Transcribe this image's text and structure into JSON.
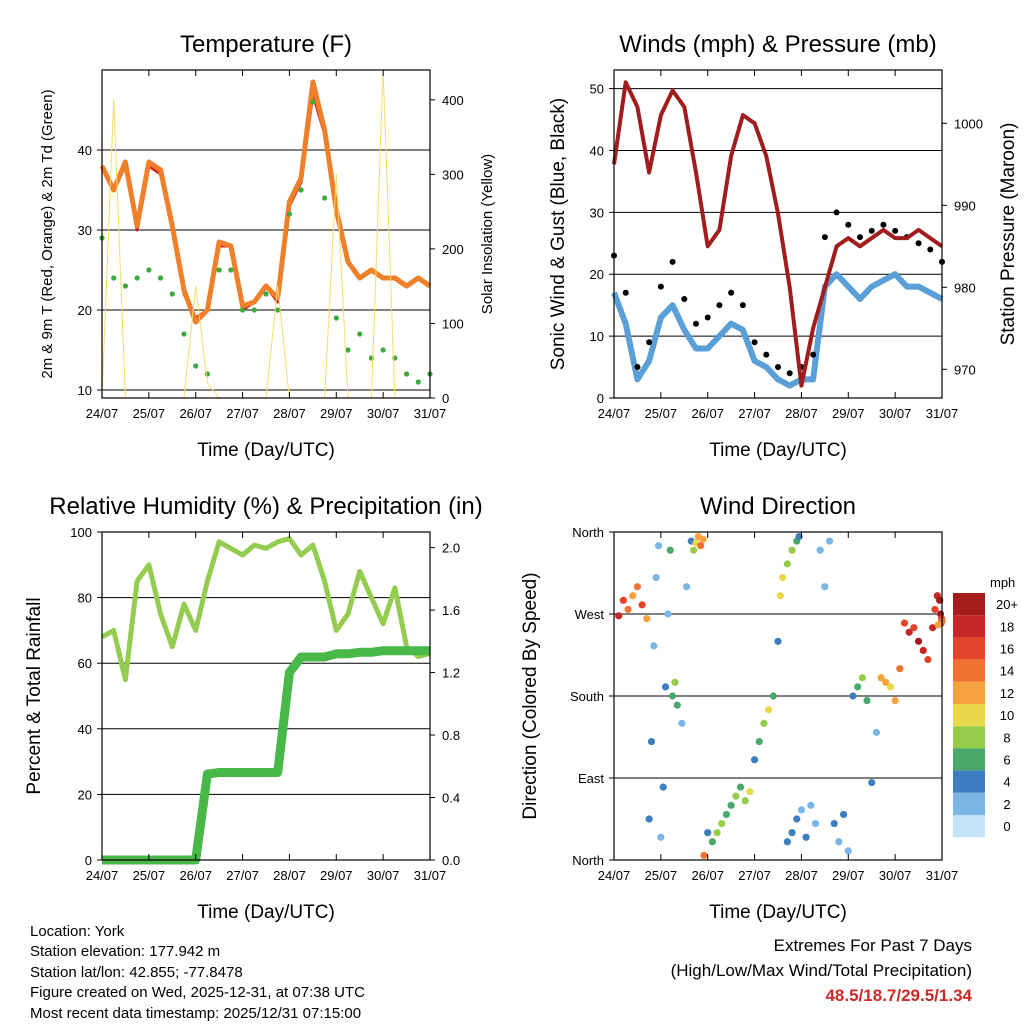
{
  "x_ticks": [
    "24/07",
    "25/07",
    "26/07",
    "27/07",
    "28/07",
    "29/07",
    "30/07",
    "31/07"
  ],
  "x_label": "Time (Day/UTC)",
  "colors": {
    "temp2m": "#d21f1f",
    "temp9m": "#f07f2a",
    "dewpoint": "#3cab3c",
    "solar": "#f5dd6b",
    "wind": "#5a9fd8",
    "gust": "#000000",
    "pressure": "#a11c1c",
    "rh": "#93cc4f",
    "precip": "#48b848"
  },
  "chart_data": [
    {
      "type": "line",
      "title": "Temperature (F)",
      "ylabel": "2m & 9m T (Red, Orange) & 2m Td (Green)",
      "y2label": "Solar Insolation (Yellow)",
      "ylim": [
        9,
        50
      ],
      "yticks": [
        10,
        20,
        30,
        40
      ],
      "y2lim": [
        0,
        440
      ],
      "y2ticks": [
        0,
        100,
        200,
        300,
        400
      ],
      "x": [
        0,
        0.25,
        0.5,
        0.75,
        1.0,
        1.25,
        1.5,
        1.75,
        2.0,
        2.25,
        2.5,
        2.75,
        3.0,
        3.25,
        3.5,
        3.75,
        4.0,
        4.25,
        4.5,
        4.75,
        5.0,
        5.25,
        5.5,
        5.75,
        6.0,
        6.25,
        6.5,
        6.75,
        7.0
      ],
      "series": [
        {
          "name": "2m T",
          "values": [
            38,
            35,
            38,
            30,
            38,
            37,
            30,
            22,
            19,
            20,
            28,
            28,
            20,
            21,
            23,
            21,
            33,
            36,
            47,
            42,
            32,
            26,
            24,
            25,
            24,
            24,
            23,
            24,
            23
          ]
        },
        {
          "name": "9m T",
          "values": [
            38,
            35,
            38.5,
            30.5,
            38.5,
            37.5,
            30.5,
            22.5,
            18.5,
            20,
            28.5,
            28,
            20.5,
            21,
            23,
            21.5,
            33.5,
            36.5,
            48.5,
            42.5,
            32.5,
            26,
            24,
            25,
            24,
            24,
            23,
            24,
            23
          ]
        },
        {
          "name": "2m Td",
          "values": [
            29,
            24,
            23,
            24,
            25,
            24,
            22,
            17,
            13,
            12,
            25,
            25,
            20,
            20,
            22,
            20,
            32,
            35,
            46,
            34,
            19,
            15,
            17,
            14,
            15,
            14,
            12,
            11,
            12
          ]
        },
        {
          "name": "Solar",
          "axis": "right",
          "values": [
            0,
            400,
            0,
            0,
            0,
            0,
            0,
            0,
            150,
            20,
            0,
            0,
            0,
            0,
            0,
            150,
            0,
            0,
            0,
            0,
            300,
            0,
            0,
            0,
            440,
            0,
            0,
            0,
            0
          ]
        }
      ]
    },
    {
      "type": "line",
      "title": "Winds (mph) & Pressure (mb)",
      "ylabel": "Sonic Wind & Gust (Blue, Black)",
      "y2label": "Station Pressure (Maroon)",
      "ylim": [
        0,
        53
      ],
      "yticks": [
        0,
        10,
        20,
        30,
        40,
        50
      ],
      "y2lim": [
        966.5,
        1006.5
      ],
      "y2ticks": [
        970,
        980,
        990,
        1000
      ],
      "x": [
        0,
        0.25,
        0.5,
        0.75,
        1.0,
        1.25,
        1.5,
        1.75,
        2.0,
        2.25,
        2.5,
        2.75,
        3.0,
        3.25,
        3.5,
        3.75,
        4.0,
        4.25,
        4.5,
        4.75,
        5.0,
        5.25,
        5.5,
        5.75,
        6.0,
        6.25,
        6.5,
        6.75,
        7.0
      ],
      "series": [
        {
          "name": "Sonic Wind",
          "values": [
            17,
            12,
            3,
            6,
            13,
            15,
            11,
            8,
            8,
            10,
            12,
            11,
            6,
            5,
            3,
            2,
            3,
            3,
            18,
            20,
            18,
            16,
            18,
            19,
            20,
            18,
            18,
            17,
            16
          ]
        },
        {
          "name": "Gust",
          "values": [
            23,
            17,
            5,
            9,
            18,
            22,
            16,
            12,
            13,
            15,
            17,
            15,
            9,
            7,
            5,
            4,
            5,
            7,
            26,
            30,
            28,
            26,
            27,
            28,
            27,
            26,
            25,
            24,
            22
          ]
        },
        {
          "name": "Pressure",
          "axis": "right",
          "values": [
            995,
            1005,
            1002,
            994,
            1001,
            1004,
            1002,
            994,
            985,
            987,
            996,
            1001,
            1000,
            996,
            989,
            980,
            968,
            975,
            980,
            985,
            986,
            985,
            986,
            987,
            986,
            986,
            987,
            986,
            985
          ]
        }
      ]
    },
    {
      "type": "line",
      "title": "Relative Humidity (%) & Precipitation (in)",
      "ylabel": "Percent & Total Rainfall",
      "ylim": [
        0,
        100
      ],
      "yticks": [
        0,
        20,
        40,
        60,
        80,
        100
      ],
      "y2lim": [
        0,
        2.1
      ],
      "y2ticks": [
        0.0,
        0.4,
        0.8,
        1.2,
        1.6,
        2.0
      ],
      "x": [
        0,
        0.25,
        0.5,
        0.75,
        1.0,
        1.25,
        1.5,
        1.75,
        2.0,
        2.25,
        2.5,
        2.75,
        3.0,
        3.25,
        3.5,
        3.75,
        4.0,
        4.25,
        4.5,
        4.75,
        5.0,
        5.25,
        5.5,
        5.75,
        6.0,
        6.25,
        6.5,
        6.75,
        7.0
      ],
      "series": [
        {
          "name": "Relative Humidity",
          "values": [
            68,
            70,
            55,
            85,
            90,
            75,
            65,
            78,
            70,
            85,
            97,
            95,
            93,
            96,
            95,
            97,
            98,
            93,
            96,
            85,
            70,
            75,
            88,
            80,
            72,
            83,
            65,
            62,
            63
          ]
        },
        {
          "name": "Total Rainfall",
          "axis": "right",
          "values": [
            0,
            0,
            0,
            0,
            0,
            0,
            0,
            0,
            0,
            0.55,
            0.56,
            0.56,
            0.56,
            0.56,
            0.56,
            0.56,
            1.2,
            1.3,
            1.3,
            1.3,
            1.32,
            1.32,
            1.33,
            1.33,
            1.34,
            1.34,
            1.34,
            1.34,
            1.34
          ]
        }
      ]
    },
    {
      "type": "scatter",
      "title": "Wind Direction",
      "ylabel": "Direction (Colored By Speed)",
      "ylim": [
        0,
        360
      ],
      "yticks": [
        0,
        90,
        180,
        270,
        360
      ],
      "ytick_labels": [
        "North",
        "East",
        "South",
        "West",
        "North"
      ],
      "legend_title": "mph",
      "legend_labels": [
        "20+",
        "18",
        "16",
        "14",
        "12",
        "10",
        "8",
        "6",
        "4",
        "2",
        "0"
      ],
      "legend_colors": [
        "#a41c1c",
        "#c62626",
        "#e4452a",
        "#f2732f",
        "#f6a33f",
        "#e8d84a",
        "#97cc4a",
        "#4aa86a",
        "#3c7ec0",
        "#7ab7e6",
        "#c3e3f7"
      ],
      "legend_position": "right",
      "points": [
        {
          "x": 0.1,
          "dir": 268,
          "speed": 18
        },
        {
          "x": 0.2,
          "dir": 285,
          "speed": 16
        },
        {
          "x": 0.3,
          "dir": 275,
          "speed": 14
        },
        {
          "x": 0.4,
          "dir": 290,
          "speed": 12
        },
        {
          "x": 0.5,
          "dir": 300,
          "speed": 14
        },
        {
          "x": 0.6,
          "dir": 280,
          "speed": 16
        },
        {
          "x": 0.7,
          "dir": 265,
          "speed": 12
        },
        {
          "x": 0.75,
          "dir": 45,
          "speed": 4
        },
        {
          "x": 0.8,
          "dir": 130,
          "speed": 4
        },
        {
          "x": 0.85,
          "dir": 235,
          "speed": 2
        },
        {
          "x": 0.9,
          "dir": 310,
          "speed": 2
        },
        {
          "x": 0.95,
          "dir": 345,
          "speed": 2
        },
        {
          "x": 1.0,
          "dir": 25,
          "speed": 2
        },
        {
          "x": 1.05,
          "dir": 80,
          "speed": 4
        },
        {
          "x": 1.1,
          "dir": 190,
          "speed": 4
        },
        {
          "x": 1.15,
          "dir": 270,
          "speed": 2
        },
        {
          "x": 1.2,
          "dir": 340,
          "speed": 6
        },
        {
          "x": 1.25,
          "dir": 180,
          "speed": 6
        },
        {
          "x": 1.3,
          "dir": 195,
          "speed": 8
        },
        {
          "x": 1.35,
          "dir": 170,
          "speed": 6
        },
        {
          "x": 1.45,
          "dir": 150,
          "speed": 2
        },
        {
          "x": 1.55,
          "dir": 300,
          "speed": 2
        },
        {
          "x": 1.65,
          "dir": 350,
          "speed": 4
        },
        {
          "x": 1.7,
          "dir": 340,
          "speed": 8
        },
        {
          "x": 1.75,
          "dir": 348,
          "speed": 10
        },
        {
          "x": 1.8,
          "dir": 355,
          "speed": 12
        },
        {
          "x": 1.85,
          "dir": 345,
          "speed": 14
        },
        {
          "x": 1.9,
          "dir": 352,
          "speed": 12
        },
        {
          "x": 1.92,
          "dir": 5,
          "speed": 14
        },
        {
          "x": 2.0,
          "dir": 30,
          "speed": 4
        },
        {
          "x": 2.1,
          "dir": 20,
          "speed": 6
        },
        {
          "x": 2.2,
          "dir": 30,
          "speed": 8
        },
        {
          "x": 2.3,
          "dir": 40,
          "speed": 8
        },
        {
          "x": 2.4,
          "dir": 50,
          "speed": 6
        },
        {
          "x": 2.5,
          "dir": 60,
          "speed": 6
        },
        {
          "x": 2.6,
          "dir": 70,
          "speed": 8
        },
        {
          "x": 2.7,
          "dir": 80,
          "speed": 6
        },
        {
          "x": 2.8,
          "dir": 65,
          "speed": 8
        },
        {
          "x": 2.9,
          "dir": 75,
          "speed": 10
        },
        {
          "x": 3.0,
          "dir": 110,
          "speed": 4
        },
        {
          "x": 3.1,
          "dir": 130,
          "speed": 6
        },
        {
          "x": 3.2,
          "dir": 150,
          "speed": 8
        },
        {
          "x": 3.3,
          "dir": 165,
          "speed": 10
        },
        {
          "x": 3.4,
          "dir": 180,
          "speed": 6
        },
        {
          "x": 3.5,
          "dir": 240,
          "speed": 4
        },
        {
          "x": 3.55,
          "dir": 290,
          "speed": 10
        },
        {
          "x": 3.6,
          "dir": 310,
          "speed": 10
        },
        {
          "x": 3.7,
          "dir": 325,
          "speed": 8
        },
        {
          "x": 3.8,
          "dir": 340,
          "speed": 8
        },
        {
          "x": 3.9,
          "dir": 350,
          "speed": 6
        },
        {
          "x": 3.95,
          "dir": 355,
          "speed": 4
        },
        {
          "x": 3.7,
          "dir": 20,
          "speed": 4
        },
        {
          "x": 3.8,
          "dir": 30,
          "speed": 4
        },
        {
          "x": 3.9,
          "dir": 45,
          "speed": 4
        },
        {
          "x": 4.0,
          "dir": 55,
          "speed": 2
        },
        {
          "x": 4.1,
          "dir": 25,
          "speed": 4
        },
        {
          "x": 4.2,
          "dir": 60,
          "speed": 2
        },
        {
          "x": 4.3,
          "dir": 40,
          "speed": 2
        },
        {
          "x": 4.4,
          "dir": 340,
          "speed": 2
        },
        {
          "x": 4.5,
          "dir": 300,
          "speed": 2
        },
        {
          "x": 4.6,
          "dir": 350,
          "speed": 2
        },
        {
          "x": 4.7,
          "dir": 40,
          "speed": 4
        },
        {
          "x": 4.8,
          "dir": 20,
          "speed": 2
        },
        {
          "x": 4.9,
          "dir": 50,
          "speed": 4
        },
        {
          "x": 5.0,
          "dir": 10,
          "speed": 2
        },
        {
          "x": 5.1,
          "dir": 180,
          "speed": 4
        },
        {
          "x": 5.2,
          "dir": 190,
          "speed": 6
        },
        {
          "x": 5.3,
          "dir": 200,
          "speed": 8
        },
        {
          "x": 5.4,
          "dir": 175,
          "speed": 6
        },
        {
          "x": 5.5,
          "dir": 85,
          "speed": 4
        },
        {
          "x": 5.6,
          "dir": 140,
          "speed": 2
        },
        {
          "x": 5.7,
          "dir": 200,
          "speed": 12
        },
        {
          "x": 5.8,
          "dir": 195,
          "speed": 12
        },
        {
          "x": 5.9,
          "dir": 190,
          "speed": 10
        },
        {
          "x": 6.0,
          "dir": 175,
          "speed": 12
        },
        {
          "x": 6.1,
          "dir": 210,
          "speed": 14
        },
        {
          "x": 6.2,
          "dir": 260,
          "speed": 16
        },
        {
          "x": 6.3,
          "dir": 250,
          "speed": 18
        },
        {
          "x": 6.4,
          "dir": 255,
          "speed": 16
        },
        {
          "x": 6.5,
          "dir": 240,
          "speed": 20
        },
        {
          "x": 6.6,
          "dir": 230,
          "speed": 18
        },
        {
          "x": 6.7,
          "dir": 220,
          "speed": 16
        },
        {
          "x": 6.8,
          "dir": 255,
          "speed": 18
        },
        {
          "x": 6.85,
          "dir": 275,
          "speed": 16
        },
        {
          "x": 6.9,
          "dir": 290,
          "speed": 18
        },
        {
          "x": 6.95,
          "dir": 285,
          "speed": 20
        },
        {
          "x": 6.97,
          "dir": 270,
          "speed": 20
        },
        {
          "x": 6.98,
          "dir": 260,
          "speed": 18
        },
        {
          "x": 6.99,
          "dir": 265,
          "speed": 16
        },
        {
          "x": 7.0,
          "dir": 262,
          "speed": 14
        },
        {
          "x": 6.92,
          "dir": 258,
          "speed": 12
        }
      ]
    }
  ],
  "info": {
    "location": "Location: York",
    "elevation": "Station elevation: 177.942 m",
    "latlon": "Station lat/lon: 42.855; -77.8478",
    "created": "Figure created on Wed, 2025-12-31, at 07:38 UTC",
    "recent": "Most recent data timestamp: 2025/12/31 07:15:00"
  },
  "extremes": {
    "title": "Extremes For Past 7 Days",
    "subtitle": "(High/Low/Max Wind/Total Precipitation)",
    "value": "48.5/18.7/29.5/1.34"
  }
}
